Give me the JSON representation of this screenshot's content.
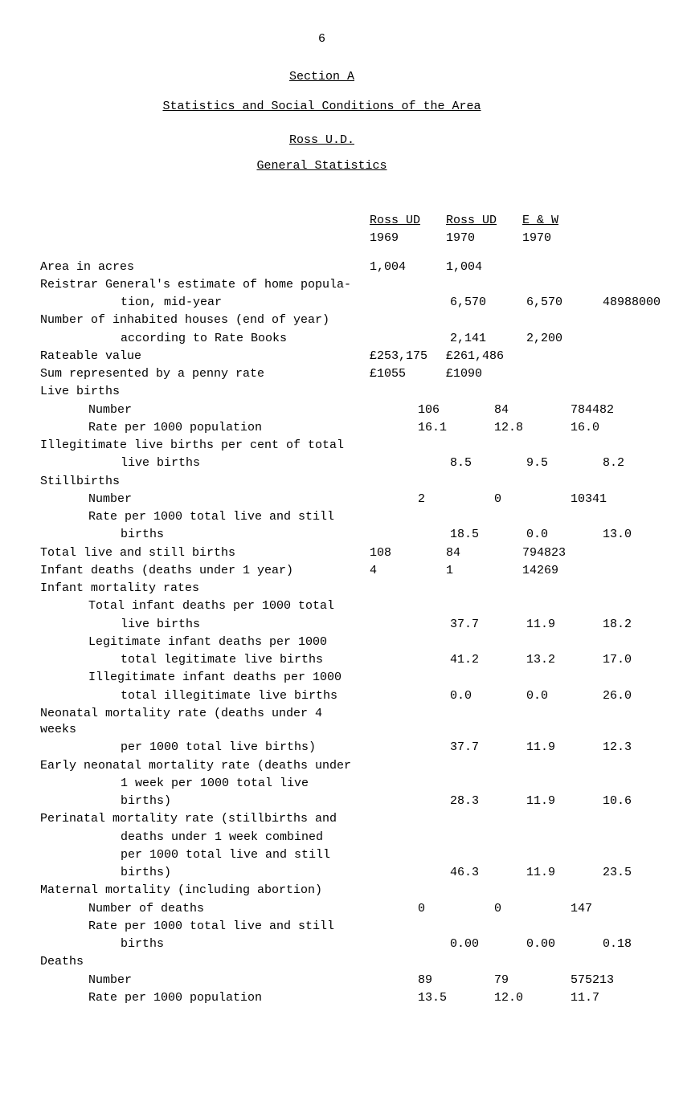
{
  "page_number": "6",
  "section_title": "Section  A",
  "main_title": "Statistics and Social Conditions of the Area",
  "sub1": "Ross U.D.",
  "sub2": "General Statistics",
  "headers": {
    "col1_line1": "Ross UD",
    "col1_line2": "1969",
    "col2_line1": "Ross UD",
    "col2_line2": "1970",
    "col3_line1": "E & W",
    "col3_line2": "1970"
  },
  "rows": [
    {
      "label": "Area in acres",
      "c1": "1,004",
      "c2": "1,004",
      "c3": ""
    },
    {
      "label": "Reistrar General's estimate of home popula-",
      "c1": "",
      "c2": "",
      "c3": ""
    },
    {
      "label": "tion, mid-year",
      "indent": 2,
      "c1": "6,570",
      "c2": "6,570",
      "c3": "48988000"
    },
    {
      "label": "Number of inhabited houses (end of year)",
      "c1": "",
      "c2": "",
      "c3": ""
    },
    {
      "label": "according to Rate Books",
      "indent": 2,
      "c1": "2,141",
      "c2": "2,200",
      "c3": ""
    },
    {
      "label": "Rateable value",
      "c1": "£253,175",
      "c2": "£261,486",
      "c3": ""
    },
    {
      "label": "Sum represented by a penny rate",
      "c1": "£1055",
      "c2": "£1090",
      "c3": ""
    },
    {
      "label": "Live births",
      "c1": "",
      "c2": "",
      "c3": ""
    },
    {
      "label": "Number",
      "indent": 1,
      "c1": "106",
      "c2": "84",
      "c3": "784482"
    },
    {
      "label": "Rate per 1000 population",
      "indent": 1,
      "c1": "16.1",
      "c2": "12.8",
      "c3": "16.0"
    },
    {
      "label": "Illegitimate live births per cent of total",
      "c1": "",
      "c2": "",
      "c3": ""
    },
    {
      "label": "live births",
      "indent": 2,
      "c1": "8.5",
      "c2": "9.5",
      "c3": "8.2"
    },
    {
      "label": "Stillbirths",
      "c1": "",
      "c2": "",
      "c3": ""
    },
    {
      "label": "Number",
      "indent": 1,
      "c1": "2",
      "c2": "0",
      "c3": "10341"
    },
    {
      "label": "Rate per 1000 total live and still",
      "indent": 1,
      "c1": "",
      "c2": "",
      "c3": ""
    },
    {
      "label": "births",
      "indent": 2,
      "c1": "18.5",
      "c2": "0.0",
      "c3": "13.0"
    },
    {
      "label": "Total live and still births",
      "c1": "108",
      "c2": "84",
      "c3": "794823"
    },
    {
      "label": "Infant deaths (deaths under 1 year)",
      "c1": "4",
      "c2": "1",
      "c3": "14269"
    },
    {
      "label": "Infant mortality rates",
      "c1": "",
      "c2": "",
      "c3": ""
    },
    {
      "label": "Total infant deaths per 1000 total",
      "indent": 1,
      "c1": "",
      "c2": "",
      "c3": ""
    },
    {
      "label": "live births",
      "indent": 2,
      "c1": "37.7",
      "c2": "11.9",
      "c3": "18.2"
    },
    {
      "label": "Legitimate infant deaths per 1000",
      "indent": 1,
      "c1": "",
      "c2": "",
      "c3": ""
    },
    {
      "label": "total legitimate live births",
      "indent": 2,
      "c1": "41.2",
      "c2": "13.2",
      "c3": "17.0"
    },
    {
      "label": "Illegitimate infant deaths per 1000",
      "indent": 1,
      "c1": "",
      "c2": "",
      "c3": ""
    },
    {
      "label": "total illegitimate live births",
      "indent": 2,
      "c1": "0.0",
      "c2": "0.0",
      "c3": "26.0"
    },
    {
      "label": "Neonatal mortality rate (deaths under 4 weeks",
      "c1": "",
      "c2": "",
      "c3": ""
    },
    {
      "label": "per 1000 total live births)",
      "indent": 2,
      "c1": "37.7",
      "c2": "11.9",
      "c3": "12.3"
    },
    {
      "label": "Early neonatal mortality rate (deaths under",
      "c1": "",
      "c2": "",
      "c3": ""
    },
    {
      "label": "1 week per 1000 total live",
      "indent": 2,
      "c1": "",
      "c2": "",
      "c3": ""
    },
    {
      "label": "births)",
      "indent": 2,
      "c1": "28.3",
      "c2": "11.9",
      "c3": "10.6"
    },
    {
      "label": "Perinatal mortality rate (stillbirths and",
      "c1": "",
      "c2": "",
      "c3": ""
    },
    {
      "label": "deaths under 1 week combined",
      "indent": 2,
      "c1": "",
      "c2": "",
      "c3": ""
    },
    {
      "label": "per 1000 total live and still",
      "indent": 2,
      "c1": "",
      "c2": "",
      "c3": ""
    },
    {
      "label": "births)",
      "indent": 2,
      "c1": "46.3",
      "c2": "11.9",
      "c3": "23.5"
    },
    {
      "label": "Maternal mortality (including abortion)",
      "c1": "",
      "c2": "",
      "c3": ""
    },
    {
      "label": "Number of deaths",
      "indent": 1,
      "c1": "0",
      "c2": "0",
      "c3": "147"
    },
    {
      "label": "Rate per 1000 total live and still",
      "indent": 1,
      "c1": "",
      "c2": "",
      "c3": ""
    },
    {
      "label": "births",
      "indent": 2,
      "c1": "0.00",
      "c2": "0.00",
      "c3": "0.18"
    },
    {
      "label": "Deaths",
      "c1": "",
      "c2": "",
      "c3": ""
    },
    {
      "label": "Number",
      "indent": 1,
      "c1": "89",
      "c2": "79",
      "c3": "575213"
    },
    {
      "label": "Rate per 1000 population",
      "indent": 1,
      "c1": "13.5",
      "c2": "12.0",
      "c3": "11.7"
    }
  ]
}
